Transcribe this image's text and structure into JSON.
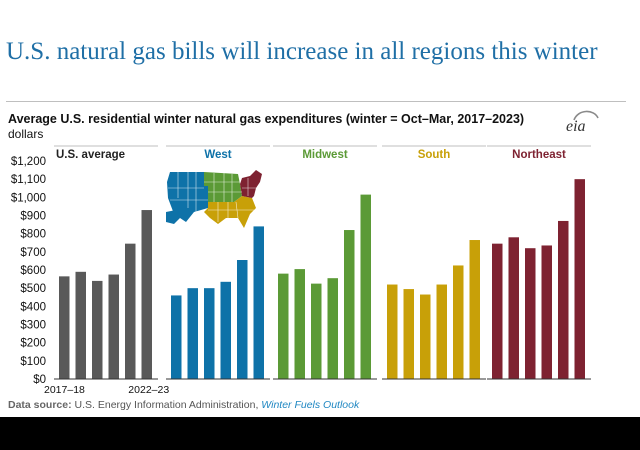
{
  "headline": "U.S. natural gas bills will increase in all regions this winter",
  "subtitle": "Average U.S. residential winter natural gas expenditures (winter = Oct–Mar, 2017–2023)",
  "units": "dollars",
  "logo_text": "eia",
  "source": {
    "label": "Data source:",
    "agency": "U.S. Energy Information Administration,",
    "publication": "Winter Fuels Outlook"
  },
  "chart_data": {
    "type": "bar",
    "ylim": [
      0,
      1200
    ],
    "yticks": [
      "$0",
      "$100",
      "$200",
      "$300",
      "$400",
      "$500",
      "$600",
      "$700",
      "$800",
      "$900",
      "$1,000",
      "$1,100",
      "$1,200"
    ],
    "x_tick_labels": [
      "2017–18",
      "2022–23"
    ],
    "grid": false,
    "panels": [
      {
        "name": "U.S. average",
        "color": "#595959",
        "values": [
          565,
          590,
          540,
          575,
          745,
          930
        ]
      },
      {
        "name": "West",
        "color": "#0e72a8",
        "values": [
          460,
          500,
          500,
          535,
          655,
          840
        ]
      },
      {
        "name": "Midwest",
        "color": "#5b9a36",
        "values": [
          580,
          605,
          525,
          555,
          820,
          1015
        ]
      },
      {
        "name": "South",
        "color": "#c8a008",
        "values": [
          520,
          495,
          465,
          520,
          625,
          765
        ]
      },
      {
        "name": "Northeast",
        "color": "#7e2231",
        "values": [
          745,
          780,
          720,
          735,
          870,
          1100
        ]
      }
    ]
  },
  "map_colors": {
    "west": "#0e72a8",
    "midwest": "#5b9a36",
    "south": "#c8a008",
    "northeast": "#7e2231"
  }
}
